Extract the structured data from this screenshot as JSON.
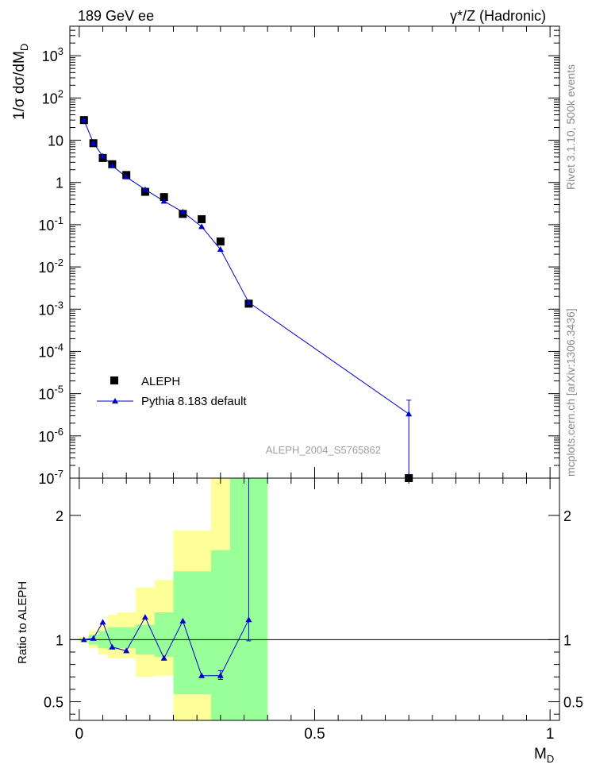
{
  "header": {
    "energy_label": "189 GeV ee",
    "process_label": "γ*/Z (Hadronic)"
  },
  "side_text": {
    "rivet": "Rivet 3.1.10, 500k events",
    "source": "mcplots.cern.ch [arXiv:1306.3436]"
  },
  "chart_data": [
    {
      "type": "scatter",
      "ylabel": "1/σ dσ/dM_D",
      "yscale": "log",
      "xlim": [
        -0.02,
        1.02
      ],
      "ylim": [
        1e-07,
        5000
      ],
      "y_ticks": [
        {
          "v": 1e-07,
          "label": "10^-7"
        },
        {
          "v": 1e-06,
          "label": "10^-6"
        },
        {
          "v": 1e-05,
          "label": "10^-5"
        },
        {
          "v": 0.0001,
          "label": "10^-4"
        },
        {
          "v": 0.001,
          "label": "10^-3"
        },
        {
          "v": 0.01,
          "label": "10^-2"
        },
        {
          "v": 0.1,
          "label": "10^-1"
        },
        {
          "v": 1,
          "label": "1"
        },
        {
          "v": 10,
          "label": "10"
        },
        {
          "v": 100,
          "label": "10^2"
        },
        {
          "v": 1000,
          "label": "10^3"
        }
      ],
      "watermark": "ALEPH_2004_S5765862",
      "legend": {
        "position": "lower-left",
        "entries": [
          "ALEPH",
          "Pythia 8.183 default"
        ]
      },
      "series": [
        {
          "name": "ALEPH",
          "marker": "square",
          "color": "#000000",
          "x": [
            0.01,
            0.03,
            0.05,
            0.07,
            0.1,
            0.14,
            0.18,
            0.22,
            0.26,
            0.3,
            0.36,
            0.7
          ],
          "y": [
            30,
            8.5,
            3.8,
            2.7,
            1.5,
            0.6,
            0.45,
            0.18,
            0.135,
            0.04,
            0.00135,
            1e-07
          ]
        },
        {
          "name": "Pythia 8.183 default",
          "marker": "triangle",
          "color": "#0000cc",
          "x": [
            0.01,
            0.03,
            0.05,
            0.07,
            0.1,
            0.14,
            0.18,
            0.22,
            0.26,
            0.3,
            0.36,
            0.7
          ],
          "y": [
            30,
            8.6,
            4.2,
            2.5,
            1.35,
            0.68,
            0.36,
            0.2,
            0.09,
            0.026,
            0.00145,
            3.3e-06
          ],
          "err_high": [
            null,
            null,
            null,
            null,
            null,
            null,
            null,
            null,
            null,
            null,
            null,
            7e-06
          ]
        }
      ]
    },
    {
      "type": "line",
      "ylabel": "Ratio to ALEPH",
      "xlabel": "M_D",
      "xlim": [
        -0.02,
        1.02
      ],
      "ylim": [
        0.35,
        2.3
      ],
      "y_ticks": [
        0.5,
        1,
        2
      ],
      "x_ticks": [
        {
          "v": 0,
          "label": "0"
        },
        {
          "v": 0.5,
          "label": "0.5"
        },
        {
          "v": 1,
          "label": "1"
        }
      ],
      "reference_line": 1,
      "bands": [
        {
          "x0": 0.0,
          "x1": 0.02,
          "yellow": [
            0.98,
            1.02
          ],
          "green": [
            0.99,
            1.01
          ]
        },
        {
          "x0": 0.02,
          "x1": 0.04,
          "yellow": [
            0.93,
            1.07
          ],
          "green": [
            0.96,
            1.04
          ]
        },
        {
          "x0": 0.04,
          "x1": 0.06,
          "yellow": [
            0.88,
            1.12
          ],
          "green": [
            0.93,
            1.07
          ]
        },
        {
          "x0": 0.06,
          "x1": 0.08,
          "yellow": [
            0.85,
            1.2
          ],
          "green": [
            0.92,
            1.1
          ]
        },
        {
          "x0": 0.08,
          "x1": 0.12,
          "yellow": [
            0.85,
            1.22
          ],
          "green": [
            0.93,
            1.1
          ]
        },
        {
          "x0": 0.12,
          "x1": 0.16,
          "yellow": [
            0.7,
            1.42
          ],
          "green": [
            0.88,
            1.12
          ]
        },
        {
          "x0": 0.16,
          "x1": 0.2,
          "yellow": [
            0.71,
            1.48
          ],
          "green": [
            0.86,
            1.22
          ]
        },
        {
          "x0": 0.2,
          "x1": 0.28,
          "yellow": [
            0.35,
            1.88
          ],
          "green": [
            0.56,
            1.55
          ]
        },
        {
          "x0": 0.28,
          "x1": 0.32,
          "yellow": [
            0.35,
            2.5
          ],
          "green": [
            0.35,
            1.72
          ]
        },
        {
          "x0": 0.32,
          "x1": 0.4,
          "yellow": [
            0.35,
            2.5
          ],
          "green": [
            0.35,
            2.5
          ]
        }
      ],
      "series": [
        {
          "name": "Pythia 8.183 default",
          "color": "#0000cc",
          "x": [
            0.01,
            0.03,
            0.05,
            0.07,
            0.1,
            0.14,
            0.18,
            0.22,
            0.26,
            0.3,
            0.36
          ],
          "y": [
            1.0,
            1.01,
            1.14,
            0.94,
            0.91,
            1.18,
            0.85,
            1.15,
            0.71,
            0.71,
            1.16
          ],
          "err_low": [
            null,
            null,
            null,
            null,
            null,
            null,
            null,
            null,
            null,
            0.68,
            0.99
          ],
          "err_high": [
            null,
            null,
            null,
            null,
            null,
            null,
            null,
            null,
            null,
            0.75,
            3.0
          ]
        }
      ]
    }
  ]
}
